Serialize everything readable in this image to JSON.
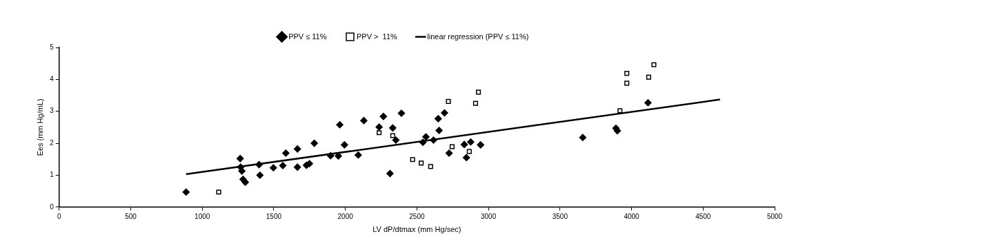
{
  "chart_data": {
    "type": "scatter",
    "xlabel": "LV dP/dtmax (mm Hg/sec)",
    "ylabel": "Ees (mm Hg/mL)",
    "xlim": [
      0,
      5000
    ],
    "xticks": [
      0,
      500,
      1000,
      1500,
      2000,
      2500,
      3000,
      3500,
      4000,
      4500,
      5000
    ],
    "ylim": [
      0,
      5
    ],
    "yticks": [
      0,
      1,
      2,
      3,
      4,
      5
    ],
    "grid": false,
    "legend": "top",
    "series": [
      {
        "name": "PPV ≤ 11%",
        "marker": "diamond",
        "color": "#000000",
        "x": [
          887,
          1265,
          1268,
          1277,
          1285,
          1301,
          1397,
          1403,
          1497,
          1563,
          1584,
          1665,
          1665,
          1728,
          1749,
          1783,
          1897,
          1951,
          1961,
          1994,
          2090,
          2129,
          2236,
          2266,
          2312,
          2331,
          2353,
          2392,
          2542,
          2563,
          2616,
          2649,
          2655,
          2693,
          2725,
          2831,
          2846,
          2876,
          2945,
          3659,
          3891,
          3901,
          4115
        ],
        "values": [
          0.47,
          1.52,
          1.25,
          1.13,
          0.87,
          0.78,
          1.33,
          1.0,
          1.23,
          1.3,
          1.69,
          1.82,
          1.25,
          1.31,
          1.36,
          2.0,
          1.61,
          1.6,
          2.58,
          1.95,
          1.63,
          2.71,
          2.51,
          2.84,
          1.05,
          2.48,
          2.1,
          2.94,
          2.03,
          2.2,
          2.1,
          2.77,
          2.4,
          2.95,
          1.69,
          1.96,
          1.55,
          2.04,
          1.95,
          2.18,
          2.47,
          2.39,
          3.27
        ]
      },
      {
        "name": "PPV >  11%",
        "marker": "square",
        "color": "#000000",
        "x": [
          1115,
          2236,
          2331,
          2470,
          2530,
          2596,
          2720,
          2746,
          2866,
          2910,
          2930,
          3919,
          3967,
          3967,
          4120,
          4156
        ],
        "values": [
          0.47,
          2.33,
          2.24,
          1.49,
          1.38,
          1.27,
          3.31,
          1.89,
          1.74,
          3.25,
          3.6,
          3.02,
          3.88,
          4.19,
          4.07,
          4.46
        ]
      },
      {
        "name": "linear regression (PPV ≤ 11%)",
        "type": "line",
        "marker": "none",
        "line_style": "solid",
        "color": "#000000",
        "x": [
          887,
          4618
        ],
        "values": [
          1.03,
          3.37
        ]
      }
    ]
  }
}
